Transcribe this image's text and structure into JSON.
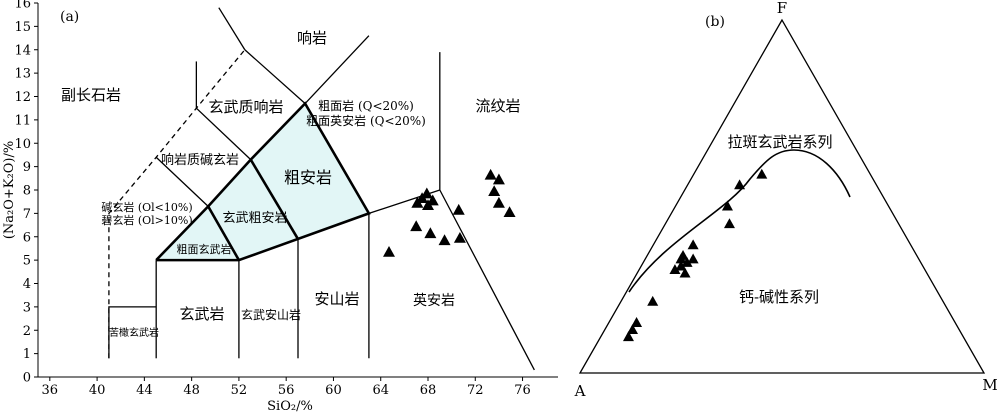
{
  "panels": {
    "a_label": "(a)",
    "b_label": "(b)"
  },
  "chart_data": [
    {
      "type": "scatter",
      "panel": "(a)",
      "xlabel": "SiO₂/%",
      "ylabel": "(Na₂O+K₂O)/%",
      "xlim": [
        35,
        79
      ],
      "ylim": [
        0,
        16
      ],
      "x_ticks": [
        36,
        40,
        44,
        48,
        52,
        56,
        60,
        64,
        68,
        72,
        76
      ],
      "x_tick_labels": [
        "36",
        "40",
        "44",
        "48",
        "52",
        "56",
        "60",
        "64",
        "68",
        "72",
        "76"
      ],
      "y_ticks": [
        0,
        1,
        2,
        3,
        4,
        5,
        6,
        7,
        8,
        9,
        10,
        11,
        12,
        13,
        14,
        15,
        16
      ],
      "y_tick_labels": [
        "0",
        "1",
        "2",
        "3",
        "4",
        "5",
        "6",
        "7",
        "8",
        "9",
        "10",
        "11",
        "12",
        "13",
        "14",
        "15",
        "16"
      ],
      "field_labels": {
        "foidite": "副长石岩",
        "phonolite": "响岩",
        "tephriphonolite": "玄武质响岩",
        "phonotephrite": "响岩质碱玄岩",
        "tephrite_line1": "碱玄岩 (Ol<10%)",
        "tephrite_line2": "碧玄岩 (Ol>10%)",
        "trachyte_line1": "粗面岩 (Q<20%)",
        "trachyte_line2": "粗面英安岩 (Q<20%)",
        "rhyolite": "流纹岩",
        "trachyandesite": "粗安岩",
        "basaltic_trachyandesite": "玄武粗安岩",
        "trachybasalt": "粗面玄武岩",
        "picrobasalt": "苦橄玄武岩",
        "basalt": "玄武岩",
        "basaltic_andesite": "玄武安山岩",
        "andesite": "安山岩",
        "dacite": "英安岩"
      },
      "points": [
        {
          "x": 64.7,
          "y": 5.3
        },
        {
          "x": 67.0,
          "y": 6.4
        },
        {
          "x": 67.1,
          "y": 7.4
        },
        {
          "x": 67.5,
          "y": 7.6
        },
        {
          "x": 67.9,
          "y": 7.8
        },
        {
          "x": 68.0,
          "y": 7.3
        },
        {
          "x": 68.2,
          "y": 6.1
        },
        {
          "x": 68.4,
          "y": 7.5
        },
        {
          "x": 69.4,
          "y": 5.8
        },
        {
          "x": 70.6,
          "y": 7.1
        },
        {
          "x": 70.7,
          "y": 5.9
        },
        {
          "x": 73.3,
          "y": 8.6
        },
        {
          "x": 73.6,
          "y": 7.9
        },
        {
          "x": 74.0,
          "y": 8.4
        },
        {
          "x": 74.0,
          "y": 7.4
        },
        {
          "x": 74.9,
          "y": 7.0
        }
      ]
    },
    {
      "type": "scatter",
      "panel": "(b)",
      "vertex_labels": {
        "top": "F",
        "left": "A",
        "right": "M"
      },
      "region_labels": {
        "upper": "拉斑玄武岩系列",
        "lower": "钙-碱性系列"
      },
      "points_FAM": [
        {
          "F": 0.14,
          "A": 0.79
        },
        {
          "F": 0.12,
          "A": 0.81
        },
        {
          "F": 0.1,
          "A": 0.83
        },
        {
          "F": 0.2,
          "A": 0.72
        },
        {
          "F": 0.28,
          "A": 0.6
        },
        {
          "F": 0.29,
          "A": 0.62
        },
        {
          "F": 0.3,
          "A": 0.6
        },
        {
          "F": 0.31,
          "A": 0.58
        },
        {
          "F": 0.32,
          "A": 0.59
        },
        {
          "F": 0.33,
          "A": 0.58
        },
        {
          "F": 0.32,
          "A": 0.56
        },
        {
          "F": 0.36,
          "A": 0.54
        },
        {
          "F": 0.42,
          "A": 0.42
        },
        {
          "F": 0.47,
          "A": 0.4
        },
        {
          "F": 0.53,
          "A": 0.34
        },
        {
          "F": 0.56,
          "A": 0.27
        }
      ]
    }
  ]
}
